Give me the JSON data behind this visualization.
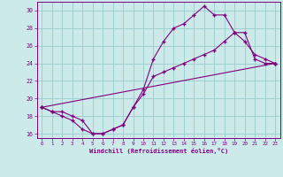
{
  "xlabel": "Windchill (Refroidissement éolien,°C)",
  "bg_color": "#cceaea",
  "line_color": "#800080",
  "grid_color": "#99cccc",
  "xlim": [
    -0.5,
    23.5
  ],
  "ylim": [
    15.5,
    31.0
  ],
  "xticks": [
    0,
    1,
    2,
    3,
    4,
    5,
    6,
    7,
    8,
    9,
    10,
    11,
    12,
    13,
    14,
    15,
    16,
    17,
    18,
    19,
    20,
    21,
    22,
    23
  ],
  "yticks": [
    16,
    18,
    20,
    22,
    24,
    26,
    28,
    30
  ],
  "line1_x": [
    0,
    1,
    2,
    3,
    4,
    5,
    6,
    7,
    8,
    9,
    10,
    11,
    12,
    13,
    14,
    15,
    16,
    17,
    18,
    19,
    20,
    21,
    22,
    23
  ],
  "line1_y": [
    19.0,
    18.5,
    18.5,
    18.0,
    17.5,
    16.0,
    16.0,
    16.5,
    17.0,
    19.0,
    21.0,
    24.5,
    26.5,
    28.0,
    28.5,
    29.5,
    30.5,
    29.5,
    29.5,
    27.5,
    26.5,
    25.0,
    24.5,
    24.0
  ],
  "line2_x": [
    0,
    1,
    2,
    3,
    4,
    5,
    6,
    7,
    8,
    9,
    10,
    11,
    12,
    13,
    14,
    15,
    16,
    17,
    18,
    19,
    20,
    21,
    22,
    23
  ],
  "line2_y": [
    19.0,
    18.5,
    18.0,
    17.5,
    16.5,
    16.0,
    16.0,
    16.5,
    17.0,
    19.0,
    20.5,
    22.5,
    23.0,
    23.5,
    24.0,
    24.5,
    25.0,
    25.5,
    26.5,
    27.5,
    27.5,
    24.5,
    24.0,
    24.0
  ],
  "line3_x": [
    0,
    23
  ],
  "line3_y": [
    19.0,
    24.0
  ]
}
